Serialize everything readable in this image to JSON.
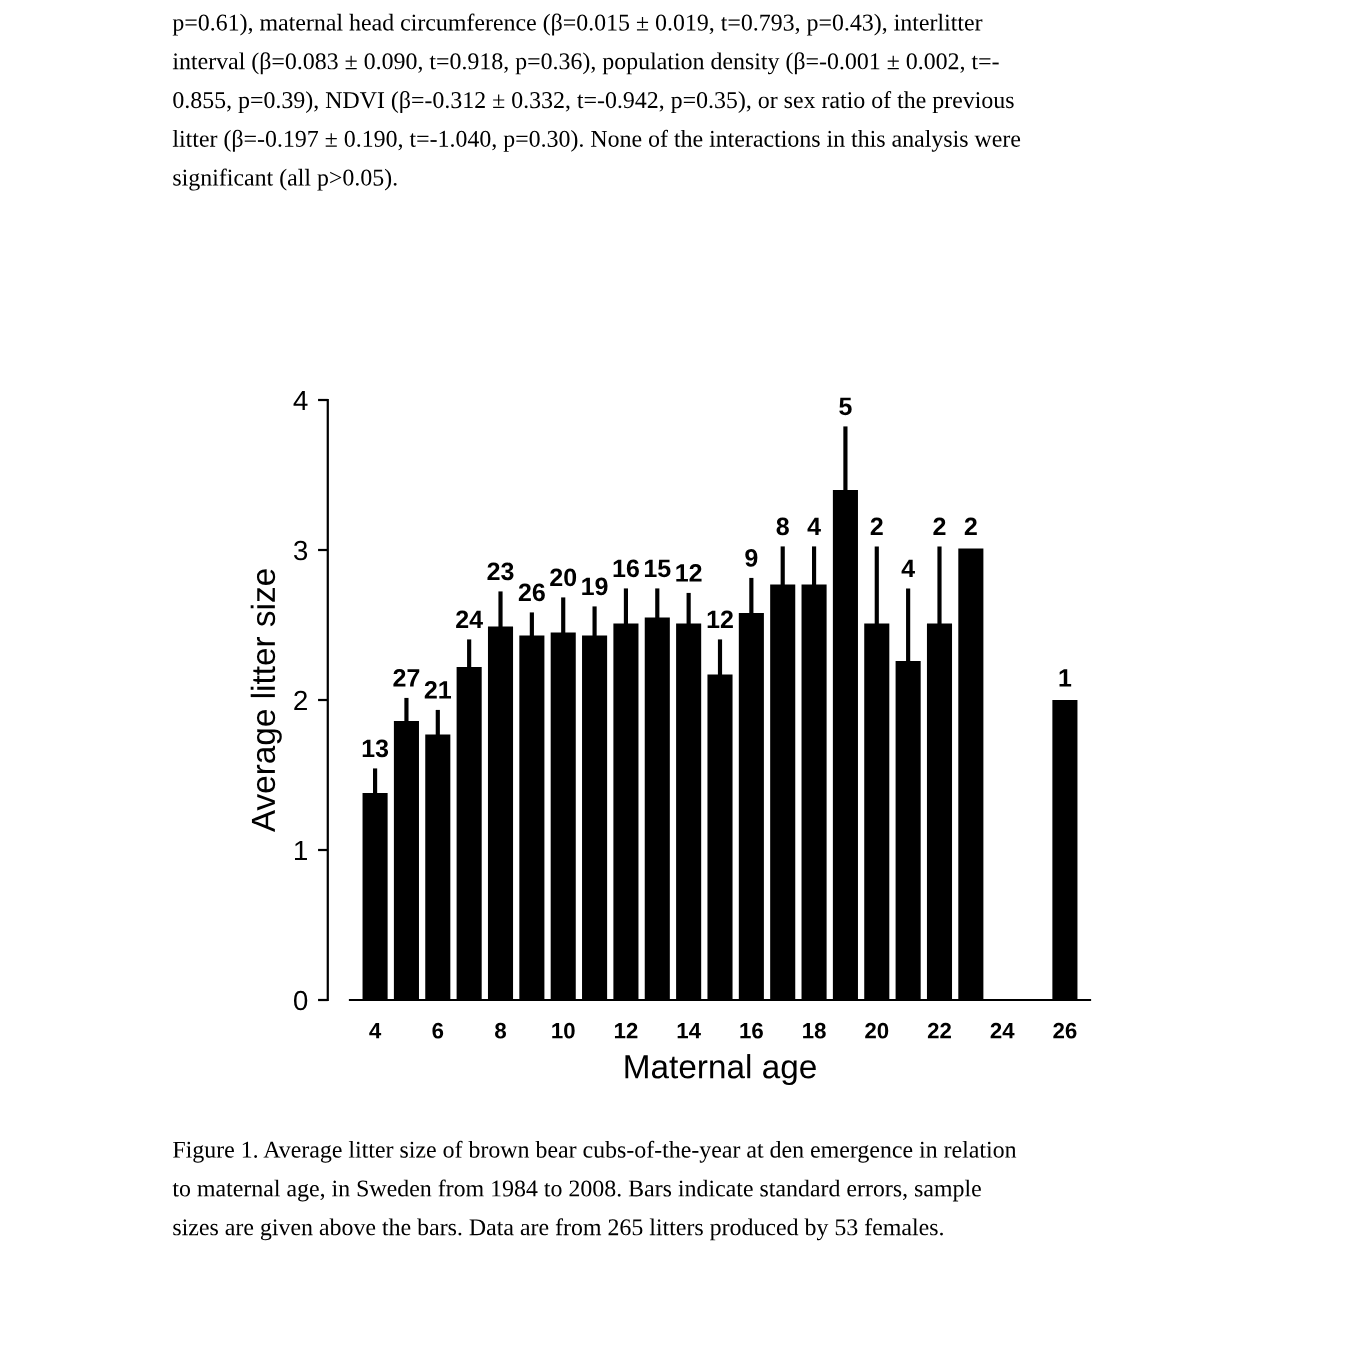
{
  "chart_data": {
    "type": "bar",
    "xlabel": "Maternal age",
    "ylabel": "Average litter size",
    "x": [
      4,
      5,
      6,
      7,
      8,
      9,
      10,
      11,
      12,
      13,
      14,
      15,
      16,
      17,
      18,
      19,
      20,
      21,
      22,
      23,
      26
    ],
    "values": [
      1.38,
      1.86,
      1.77,
      2.22,
      2.49,
      2.43,
      2.45,
      2.43,
      2.51,
      2.55,
      2.51,
      2.17,
      2.58,
      2.77,
      2.77,
      3.4,
      2.51,
      2.26,
      2.51,
      3.01,
      2.0
    ],
    "errors": [
      0.15,
      0.14,
      0.15,
      0.17,
      0.22,
      0.14,
      0.22,
      0.18,
      0.22,
      0.18,
      0.19,
      0.22,
      0.22,
      0.24,
      0.24,
      0.41,
      0.5,
      0.47,
      0.5,
      null,
      null
    ],
    "color": "#000000",
    "xlim": [
      3.2,
      26.8
    ],
    "ylim": [
      0,
      4
    ],
    "xticks": [
      4,
      6,
      8,
      10,
      12,
      14,
      16,
      18,
      20,
      22,
      24,
      26
    ],
    "yticks": [
      0,
      1,
      2,
      3,
      4
    ],
    "grid": false,
    "legend": false,
    "annotations": [
      {
        "text": "13",
        "x": 4,
        "y": 1.53
      },
      {
        "text": "27",
        "x": 5,
        "y": 2.0
      },
      {
        "text": "21",
        "x": 6,
        "y": 1.92
      },
      {
        "text": "24",
        "x": 7,
        "y": 2.39
      },
      {
        "text": "23",
        "x": 8,
        "y": 2.71
      },
      {
        "text": "26",
        "x": 9,
        "y": 2.57
      },
      {
        "text": "20",
        "x": 10,
        "y": 2.67
      },
      {
        "text": "19",
        "x": 11,
        "y": 2.61
      },
      {
        "text": "16",
        "x": 12,
        "y": 2.73
      },
      {
        "text": "15",
        "x": 13,
        "y": 2.73
      },
      {
        "text": "12",
        "x": 14,
        "y": 2.7
      },
      {
        "text": "12",
        "x": 15,
        "y": 2.39
      },
      {
        "text": "9",
        "x": 16,
        "y": 2.8
      },
      {
        "text": "8",
        "x": 17,
        "y": 3.01
      },
      {
        "text": "4",
        "x": 18,
        "y": 3.01
      },
      {
        "text": "5",
        "x": 19,
        "y": 3.81
      },
      {
        "text": "2",
        "x": 20,
        "y": 3.01
      },
      {
        "text": "4",
        "x": 21,
        "y": 2.73
      },
      {
        "text": "2",
        "x": 22,
        "y": 3.01
      },
      {
        "text": "2",
        "x": 23,
        "y": 3.01
      },
      {
        "text": "1",
        "x": 26,
        "y": 2.0
      },
      "p=0.61), maternal head circumference (β=0.015 ± 0.019, t=0.793, p=0.43), interlitter\ninterval (β=0.083 ± 0.090, t=0.918, p=0.36), population density (β=-0.001 ± 0.002, t=-\n0.855, p=0.39), NDVI (β=-0.312 ± 0.332, t=-0.942, p=0.35), or sex ratio of the previous\nlitter (β=-0.197 ± 0.190, t=-1.040, p=0.30). None of the interactions in this analysis were\nsignificant (all p>0.05).",
      "Figure 1. Average litter size of brown bear cubs-of-the-year at den emergence in relation\nto maternal age, in Sweden from 1984 to 2008. Bars indicate standard errors, sample\nsizes are given above the bars. Data are from 265 litters produced by 53 females."
    ]
  }
}
